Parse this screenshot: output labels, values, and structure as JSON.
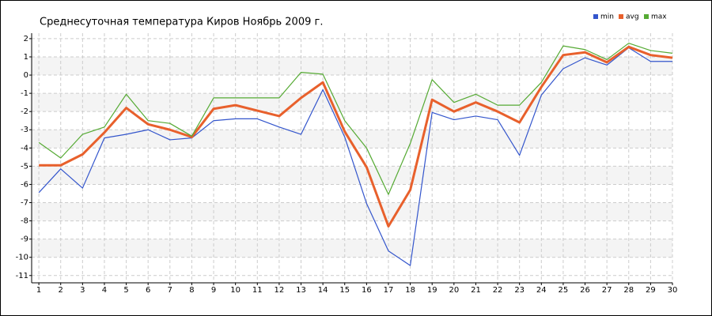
{
  "chart_data": {
    "type": "line",
    "title": "Среднесуточная температура Киров  Ноябрь 2009 г.",
    "x": [
      1,
      2,
      3,
      4,
      5,
      6,
      7,
      8,
      9,
      10,
      11,
      12,
      13,
      14,
      15,
      16,
      17,
      18,
      19,
      20,
      21,
      22,
      23,
      24,
      25,
      26,
      27,
      28,
      29,
      30
    ],
    "xlim": [
      0.67,
      30
    ],
    "ylim": [
      -11.4,
      2.3
    ],
    "yticks": [
      2,
      1,
      0,
      -1,
      -2,
      -3,
      -4,
      -5,
      -6,
      -7,
      -8,
      -9,
      -10,
      -11
    ],
    "grid": true,
    "legend": "top-right",
    "series": [
      {
        "name": "min",
        "color": "#3355cc",
        "values": [
          -6.45,
          -5.15,
          -6.2,
          -3.45,
          -3.25,
          -3.0,
          -3.55,
          -3.45,
          -2.5,
          -2.4,
          -2.4,
          -2.85,
          -3.25,
          -0.8,
          -3.4,
          -7.05,
          -9.65,
          -10.45,
          -2.05,
          -2.45,
          -2.25,
          -2.45,
          -4.4,
          -1.1,
          0.35,
          0.95,
          0.55,
          1.5,
          0.75,
          0.75
        ]
      },
      {
        "name": "avg",
        "color": "#e8602c",
        "values": [
          -4.95,
          -4.95,
          -4.35,
          -3.15,
          -1.8,
          -2.7,
          -3.0,
          -3.4,
          -1.85,
          -1.65,
          -1.95,
          -2.25,
          -1.25,
          -0.4,
          -3.1,
          -5.05,
          -8.3,
          -6.3,
          -1.35,
          -2.0,
          -1.5,
          -2.0,
          -2.6,
          -0.65,
          1.1,
          1.25,
          0.7,
          1.55,
          1.1,
          0.95
        ]
      },
      {
        "name": "max",
        "color": "#55aa33",
        "values": [
          -3.7,
          -4.55,
          -3.25,
          -2.85,
          -1.05,
          -2.5,
          -2.65,
          -3.35,
          -1.25,
          -1.25,
          -1.25,
          -1.25,
          0.15,
          0.05,
          -2.5,
          -4.0,
          -6.55,
          -3.75,
          -0.25,
          -1.5,
          -1.05,
          -1.65,
          -1.65,
          -0.4,
          1.6,
          1.4,
          0.85,
          1.75,
          1.35,
          1.2
        ]
      }
    ]
  }
}
